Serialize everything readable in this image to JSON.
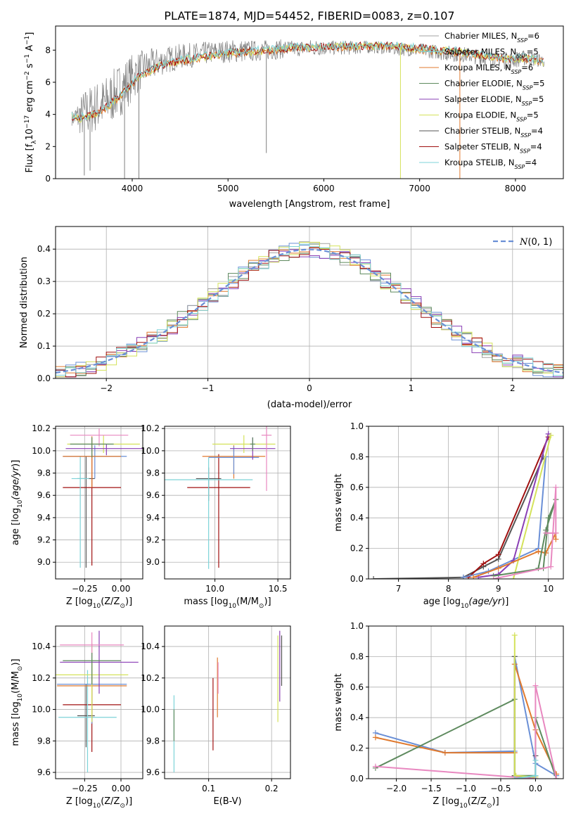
{
  "colors": {
    "chabrier_miles": "#6a8fd6",
    "salpeter_miles": "#a0a0a0",
    "kroupa_miles": "#e07a2f",
    "chabrier_elodie": "#5e8a5e",
    "salpeter_elodie": "#8a3fb5",
    "kroupa_elodie": "#d4e25a",
    "chabrier_stelib": "#555555",
    "salpeter_stelib": "#a01010",
    "kroupa_stelib": "#7dd3d8",
    "pink": "#e888c0",
    "normal": "#6a8fd6",
    "grid": "#b0b0b0"
  },
  "chart_data": [
    {
      "id": "spectrum",
      "type": "line",
      "title": "PLATE=1874, MJD=54452, FIBERID=0083, z=0.107",
      "xlabel": "wavelength [Angstrom, rest frame]",
      "ylabel": "Flux [f",
      "xlim": [
        3200,
        8500
      ],
      "ylim": [
        0,
        9.5
      ],
      "xticks": [
        4000,
        5000,
        6000,
        7000,
        8000
      ],
      "yticks": [
        0,
        2,
        4,
        6,
        8
      ],
      "grid": false,
      "legend_position": "right",
      "legend": [
        {
          "name": "Chabrier MILES, N",
          "nssp": "6",
          "color_key": "salpeter_miles"
        },
        {
          "name": "Salpeter MILES, N",
          "nssp": "5",
          "color_key": "kroupa_stelib"
        },
        {
          "name": "Kroupa MILES, N",
          "nssp": "6",
          "color_key": "kroupa_miles"
        },
        {
          "name": "Chabrier ELODIE, N",
          "nssp": "5",
          "color_key": "chabrier_elodie"
        },
        {
          "name": "Salpeter ELODIE, N",
          "nssp": "5",
          "color_key": "salpeter_elodie"
        },
        {
          "name": "Kroupa ELODIE, N",
          "nssp": "5",
          "color_key": "kroupa_elodie"
        },
        {
          "name": "Chabrier STELIB, N",
          "nssp": "4",
          "color_key": "chabrier_stelib"
        },
        {
          "name": "Salpeter STELIB, N",
          "nssp": "4",
          "color_key": "salpeter_stelib"
        },
        {
          "name": "Kroupa STELIB, N",
          "nssp": "4",
          "color_key": "kroupa_stelib"
        }
      ],
      "model_curve": {
        "x": [
          3370,
          3450,
          3550,
          3650,
          3750,
          3850,
          3950,
          4050,
          4150,
          4300,
          4500,
          4700,
          4900,
          5100,
          5300,
          5500,
          5700,
          5900,
          6100,
          6300,
          6500,
          6700,
          6900,
          7100,
          7300,
          7500,
          7700,
          7900,
          8100,
          8300
        ],
        "y": [
          3.8,
          3.7,
          3.9,
          4.1,
          4.5,
          5.0,
          5.6,
          6.2,
          6.6,
          7.0,
          7.3,
          7.5,
          7.7,
          7.8,
          7.9,
          8.0,
          8.1,
          8.1,
          8.2,
          8.2,
          8.2,
          8.2,
          8.1,
          8.0,
          7.9,
          7.8,
          7.6,
          7.4,
          7.5,
          7.2
        ]
      },
      "data_envelope": {
        "x": [
          3370,
          3500,
          3600,
          3700,
          3800,
          3900,
          4000,
          4100,
          4300,
          4500,
          4700,
          4900,
          5100,
          5300,
          5500,
          5700,
          5900,
          6100,
          6300,
          6500,
          6700,
          6900,
          7100,
          7300,
          7500,
          7700,
          7900,
          8100,
          8300
        ],
        "lo": [
          3.3,
          2.4,
          2.8,
          3.0,
          3.5,
          4.0,
          4.8,
          5.6,
          6.4,
          6.8,
          7.0,
          7.2,
          7.2,
          7.3,
          7.4,
          7.6,
          7.6,
          7.7,
          7.7,
          7.8,
          7.7,
          7.6,
          7.5,
          7.3,
          7.2,
          7.0,
          6.8,
          7.0,
          6.9
        ],
        "hi": [
          4.2,
          5.6,
          6.0,
          6.3,
          6.8,
          7.4,
          7.8,
          8.0,
          8.2,
          8.4,
          8.5,
          8.6,
          8.7,
          8.6,
          8.7,
          8.6,
          8.7,
          8.6,
          8.6,
          8.6,
          8.5,
          8.5,
          8.4,
          8.3,
          8.2,
          8.0,
          7.9,
          8.0,
          7.8
        ]
      },
      "dips": [
        {
          "x": 3500,
          "y": 0.2
        },
        {
          "x": 3560,
          "y": 0.5
        },
        {
          "x": 3920,
          "y": 0.0
        },
        {
          "x": 4070,
          "y": 0.0
        },
        {
          "x": 5400,
          "y": 1.6
        },
        {
          "x": 6800,
          "y": 0.0
        },
        {
          "x": 7420,
          "y": 0.0
        }
      ]
    },
    {
      "id": "residual-distribution",
      "type": "line",
      "xlabel": "(data-model)/error",
      "ylabel": "Normed distribution",
      "xlim": [
        -2.5,
        2.5
      ],
      "ylim": [
        0,
        0.47
      ],
      "xticks": [
        -2,
        -1,
        0,
        1,
        2
      ],
      "yticks": [
        0.0,
        0.1,
        0.2,
        0.3,
        0.4
      ],
      "grid": true,
      "legend_position": "top-right",
      "legend_label": "N(0,1)",
      "bin_width": 0.1,
      "bin_start": -2.5
    },
    {
      "id": "age-vs-z",
      "type": "scatter",
      "xlabel": "Z [log",
      "ylabel": "age  [log",
      "xlim": [
        -0.45,
        0.15
      ],
      "ylim": [
        8.85,
        10.22
      ],
      "xticks": [
        -0.25,
        0.0
      ],
      "yticks": [
        9.0,
        9.2,
        9.4,
        9.6,
        9.8,
        10.0,
        10.2
      ],
      "grid": true,
      "points": [
        {
          "x": -0.24,
          "y": 9.75,
          "xerr": 0.06,
          "yerr": [
            0.8,
            0.2
          ],
          "color_key": "chabrier_stelib"
        },
        {
          "x": -0.2,
          "y": 9.67,
          "xerr": 0.2,
          "yerr": [
            0.7,
            0.3
          ],
          "color_key": "salpeter_stelib"
        },
        {
          "x": -0.28,
          "y": 9.75,
          "xerr": 0.06,
          "yerr": [
            0.8,
            0.2
          ],
          "color_key": "kroupa_stelib"
        },
        {
          "x": -0.18,
          "y": 9.95,
          "xerr": 0.22,
          "yerr": [
            0.2,
            0.1
          ],
          "color_key": "chabrier_miles"
        },
        {
          "x": -0.2,
          "y": 9.95,
          "xerr": 0.2,
          "yerr": [
            0.28,
            0.18
          ],
          "color_key": "kroupa_miles"
        },
        {
          "x": -0.12,
          "y": 10.06,
          "xerr": 0.25,
          "yerr": [
            0.08,
            0.08
          ],
          "color_key": "kroupa_elodie"
        },
        {
          "x": -0.1,
          "y": 10.02,
          "xerr": 0.28,
          "yerr": [
            0.06,
            0.04
          ],
          "color_key": "salpeter_elodie"
        },
        {
          "x": -0.15,
          "y": 10.14,
          "xerr": 0.2,
          "yerr": [
            0.1,
            0.06
          ],
          "color_key": "pink"
        },
        {
          "x": -0.2,
          "y": 10.06,
          "xerr": 0.15,
          "yerr": [
            0.12,
            0.06
          ],
          "color_key": "chabrier_elodie"
        }
      ]
    },
    {
      "id": "age-vs-mass",
      "type": "scatter",
      "xlabel": "mass [log",
      "ylabel": "",
      "xlim": [
        9.6,
        10.6
      ],
      "ylim": [
        8.85,
        10.22
      ],
      "xticks": [
        10.0,
        10.5
      ],
      "yticks": [
        9.0,
        9.2,
        9.4,
        9.6,
        9.8,
        10.0,
        10.2
      ],
      "grid": true,
      "points": [
        {
          "x": 9.95,
          "y": 9.75,
          "xerr": 0.1,
          "yerr": [
            0.2,
            0.1
          ],
          "color_key": "chabrier_stelib"
        },
        {
          "x": 10.03,
          "y": 9.67,
          "xerr": 0.25,
          "yerr": [
            0.72,
            0.3
          ],
          "color_key": "salpeter_stelib"
        },
        {
          "x": 9.95,
          "y": 9.74,
          "xerr": 0.35,
          "yerr": [
            0.8,
            0.2
          ],
          "color_key": "kroupa_stelib"
        },
        {
          "x": 10.15,
          "y": 9.95,
          "xerr": 0.25,
          "yerr": [
            0.2,
            0.1
          ],
          "color_key": "kroupa_miles"
        },
        {
          "x": 10.15,
          "y": 9.94,
          "xerr": 0.2,
          "yerr": [
            0.15,
            0.1
          ],
          "color_key": "chabrier_miles"
        },
        {
          "x": 10.23,
          "y": 10.06,
          "xerr": 0.25,
          "yerr": [
            0.08,
            0.08
          ],
          "color_key": "kroupa_elodie"
        },
        {
          "x": 10.3,
          "y": 10.02,
          "xerr": 0.18,
          "yerr": [
            0.1,
            0.1
          ],
          "color_key": "salpeter_elodie"
        },
        {
          "x": 10.41,
          "y": 10.14,
          "xerr": 0.04,
          "yerr": [
            0.5,
            0.08
          ],
          "color_key": "pink"
        },
        {
          "x": 10.3,
          "y": 10.06,
          "xerr": 0.02,
          "yerr": [
            0.06,
            0.06
          ],
          "color_key": "chabrier_elodie"
        }
      ]
    },
    {
      "id": "mass-weight-vs-age",
      "type": "line",
      "xlabel": "age  [log",
      "ylabel": "mass weight",
      "xlim": [
        6.4,
        10.3
      ],
      "ylim": [
        0,
        1.0
      ],
      "xticks": [
        7,
        8,
        9,
        10
      ],
      "yticks": [
        0.0,
        0.2,
        0.4,
        0.6,
        0.8,
        1.0
      ],
      "grid": true,
      "series": [
        {
          "color_key": "chabrier_stelib",
          "x": [
            6.5,
            8.3,
            8.7,
            9.0,
            9.9
          ],
          "y": [
            0.0,
            0.01,
            0.08,
            0.13,
            0.8
          ]
        },
        {
          "color_key": "salpeter_stelib",
          "x": [
            8.4,
            8.7,
            9.0,
            10.0
          ],
          "y": [
            0.01,
            0.1,
            0.16,
            0.93
          ]
        },
        {
          "color_key": "chabrier_miles",
          "x": [
            8.3,
            8.8,
            9.8,
            9.95
          ],
          "y": [
            0.01,
            0.05,
            0.2,
            0.8
          ]
        },
        {
          "color_key": "salpeter_elodie",
          "x": [
            8.6,
            9.0,
            9.3,
            10.0
          ],
          "y": [
            0.01,
            0.03,
            0.12,
            0.95
          ]
        },
        {
          "color_key": "kroupa_elodie",
          "x": [
            9.3,
            10.05
          ],
          "y": [
            0.0,
            0.94
          ]
        },
        {
          "color_key": "kroupa_miles",
          "x": [
            8.5,
            9.0,
            9.8,
            9.95,
            10.15,
            10.15
          ],
          "y": [
            0.01,
            0.07,
            0.18,
            0.17,
            0.3,
            0.26
          ]
        },
        {
          "color_key": "chabrier_elodie",
          "x": [
            8.9,
            9.9,
            10.0,
            10.15,
            9.95,
            9.8
          ],
          "y": [
            0.02,
            0.07,
            0.4,
            0.52,
            0.32,
            0.07
          ]
        },
        {
          "color_key": "pink",
          "x": [
            8.9,
            10.05,
            10.15,
            10.15,
            9.95
          ],
          "y": [
            0.0,
            0.08,
            0.6,
            0.3,
            0.3
          ]
        }
      ]
    },
    {
      "id": "mass-vs-z",
      "type": "scatter",
      "xlabel": "Z [log",
      "ylabel": "mass [log",
      "xlim": [
        -0.45,
        0.15
      ],
      "ylim": [
        9.56,
        10.53
      ],
      "xticks": [
        -0.25,
        0.0
      ],
      "yticks": [
        9.6,
        9.8,
        10.0,
        10.2,
        10.4
      ],
      "grid": true,
      "points": [
        {
          "x": -0.24,
          "y": 9.96,
          "xerr": 0.06,
          "yerr": [
            0.2,
            0.2
          ],
          "color_key": "chabrier_stelib"
        },
        {
          "x": -0.2,
          "y": 10.03,
          "xerr": 0.2,
          "yerr": [
            0.3,
            0.2
          ],
          "color_key": "salpeter_stelib"
        },
        {
          "x": -0.23,
          "y": 9.95,
          "xerr": 0.2,
          "yerr": [
            0.35,
            0.3
          ],
          "color_key": "kroupa_stelib"
        },
        {
          "x": -0.2,
          "y": 10.16,
          "xerr": 0.24,
          "yerr": [
            0.25,
            0.2
          ],
          "color_key": "chabrier_miles"
        },
        {
          "x": -0.2,
          "y": 10.15,
          "xerr": 0.24,
          "yerr": [
            0.2,
            0.15
          ],
          "color_key": "kroupa_miles"
        },
        {
          "x": -0.2,
          "y": 10.22,
          "xerr": 0.25,
          "yerr": [
            0.3,
            0.2
          ],
          "color_key": "kroupa_elodie"
        },
        {
          "x": -0.15,
          "y": 10.3,
          "xerr": 0.27,
          "yerr": [
            0.2,
            0.2
          ],
          "color_key": "salpeter_elodie"
        },
        {
          "x": -0.2,
          "y": 10.41,
          "xerr": 0.22,
          "yerr": [
            0.08,
            0.08
          ],
          "color_key": "pink"
        },
        {
          "x": -0.2,
          "y": 10.31,
          "xerr": 0.2,
          "yerr": [
            0.15,
            0.05
          ],
          "color_key": "chabrier_elodie"
        }
      ]
    },
    {
      "id": "mass-vs-ebv",
      "type": "scatter",
      "xlabel": "E(B-V)",
      "ylabel": "",
      "xlim": [
        0.03,
        0.23
      ],
      "ylim": [
        9.56,
        10.53
      ],
      "xticks": [
        0.1,
        0.2
      ],
      "yticks": [
        9.6,
        9.8,
        10.0,
        10.2,
        10.4
      ],
      "grid": true,
      "points": [
        {
          "x": 0.045,
          "y": 9.85,
          "yerr": [
            0.25,
            0.24
          ],
          "color_key": "kroupa_stelib"
        },
        {
          "x": 0.045,
          "y": 9.9,
          "yerr": [
            0.1,
            0.1
          ],
          "color_key": "chabrier_elodie"
        },
        {
          "x": 0.107,
          "y": 10.0,
          "yerr": [
            0.26,
            0.2
          ],
          "color_key": "salpeter_stelib"
        },
        {
          "x": 0.114,
          "y": 10.15,
          "yerr": [
            0.2,
            0.18
          ],
          "color_key": "kroupa_miles"
        },
        {
          "x": 0.115,
          "y": 10.2,
          "yerr": [
            0.1,
            0.1
          ],
          "color_key": "pink"
        },
        {
          "x": 0.21,
          "y": 10.22,
          "yerr": [
            0.3,
            0.25
          ],
          "color_key": "kroupa_elodie"
        },
        {
          "x": 0.213,
          "y": 10.3,
          "yerr": [
            0.25,
            0.2
          ],
          "color_key": "salpeter_elodie"
        },
        {
          "x": 0.216,
          "y": 10.35,
          "yerr": [
            0.2,
            0.12
          ],
          "color_key": "chabrier_stelib"
        }
      ]
    },
    {
      "id": "mass-weight-vs-z",
      "type": "line",
      "xlabel": "Z [log",
      "ylabel": "mass weight",
      "xlim": [
        -2.4,
        0.4
      ],
      "ylim": [
        0,
        1.0
      ],
      "xticks": [
        -2.0,
        -1.5,
        -1.0,
        -0.5,
        0.0
      ],
      "yticks": [
        0.0,
        0.2,
        0.4,
        0.6,
        0.8,
        1.0
      ],
      "grid": true,
      "series": [
        {
          "color_key": "chabrier_miles",
          "x": [
            -2.3,
            -1.3,
            -0.3,
            -0.3,
            0.0,
            0.3
          ],
          "y": [
            0.3,
            0.17,
            0.18,
            0.8,
            0.1,
            0.02
          ]
        },
        {
          "color_key": "kroupa_miles",
          "x": [
            -2.3,
            -1.3,
            -0.3,
            -0.3,
            0.0,
            0.3
          ],
          "y": [
            0.27,
            0.17,
            0.17,
            0.75,
            0.32,
            0.03
          ]
        },
        {
          "color_key": "chabrier_elodie",
          "x": [
            -2.3,
            -0.3,
            -0.3,
            0.0,
            0.0,
            0.3
          ],
          "y": [
            0.07,
            0.52,
            0.02,
            0.02,
            0.4,
            0.0
          ]
        },
        {
          "color_key": "chabrier_stelib",
          "x": [
            -0.3,
            -0.3,
            0.0,
            0.0
          ],
          "y": [
            0.8,
            0.02,
            0.0,
            0.15
          ]
        },
        {
          "color_key": "kroupa_elodie",
          "x": [
            -0.3,
            -0.3,
            -0.28,
            0.0
          ],
          "y": [
            0.94,
            0.0,
            0.02,
            0.01
          ]
        },
        {
          "color_key": "pink",
          "x": [
            -2.3,
            0.0,
            0.0,
            0.3
          ],
          "y": [
            0.08,
            0.0,
            0.61,
            0.0
          ]
        },
        {
          "color_key": "kroupa_stelib",
          "x": [
            -0.3,
            0.0,
            0.0
          ],
          "y": [
            0.0,
            0.02,
            0.12
          ]
        }
      ]
    }
  ]
}
